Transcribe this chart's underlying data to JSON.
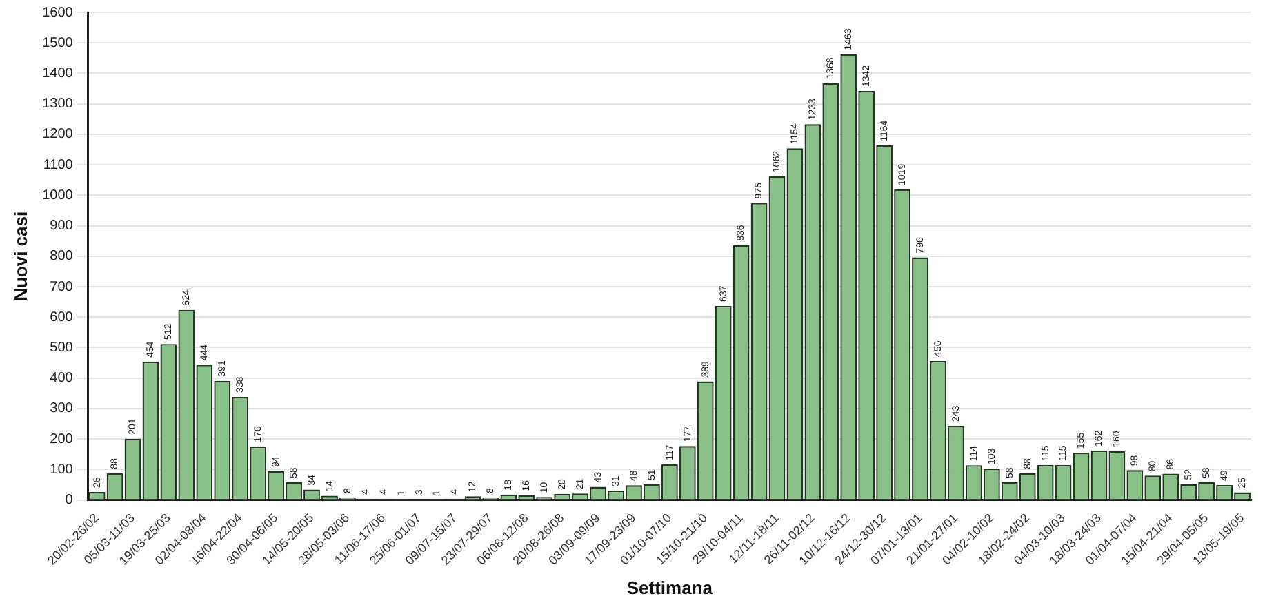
{
  "chart_data": {
    "type": "bar",
    "xlabel": "Settimana",
    "ylabel": "Nuovi casi",
    "categories": [
      "20/02-26/02",
      null,
      "05/03-11/03",
      null,
      "19/03-25/03",
      null,
      "02/04-08/04",
      null,
      "16/04-22/04",
      null,
      "30/04-06/05",
      null,
      "14/05-20/05",
      null,
      "28/05-03/06",
      null,
      "11/06-17/06",
      null,
      "25/06-01/07",
      null,
      "09/07-15/07",
      null,
      "23/07-29/07",
      null,
      "06/08-12/08",
      null,
      "20/08-26/08",
      null,
      "03/09-09/09",
      null,
      "17/09-23/09",
      null,
      "01/10-07/10",
      null,
      "15/10-21/10",
      null,
      "29/10-04/11",
      null,
      "12/11-18/11",
      null,
      "26/11-02/12",
      null,
      "10/12-16/12",
      null,
      "24/12-30/12",
      null,
      "07/01-13/01",
      null,
      "21/01-27/01",
      null,
      "04/02-10/02",
      null,
      "18/02-24/02",
      null,
      "04/03-10/03",
      null,
      "18/03-24/03",
      null,
      "01/04-07/04",
      null,
      "15/04-21/04",
      null,
      "29/04-05/05",
      null,
      "13/05-19/05"
    ],
    "values": [
      26,
      88,
      201,
      454,
      512,
      624,
      444,
      391,
      338,
      176,
      94,
      58,
      34,
      14,
      8,
      4,
      4,
      1,
      3,
      1,
      4,
      12,
      8,
      18,
      16,
      10,
      20,
      21,
      43,
      31,
      48,
      51,
      117,
      177,
      389,
      637,
      836,
      975,
      1062,
      1154,
      1233,
      1368,
      1463,
      1342,
      1164,
      1019,
      796,
      456,
      243,
      114,
      103,
      58,
      88,
      115,
      115,
      155,
      162,
      160,
      98,
      80,
      86,
      52,
      58,
      49,
      25
    ],
    "color": "#88c088",
    "ylim": [
      0,
      1600
    ],
    "yticks": [
      0,
      100,
      200,
      300,
      400,
      500,
      600,
      700,
      800,
      900,
      1000,
      1100,
      1200,
      1300,
      1400,
      1500,
      1600
    ],
    "grid": "y",
    "data_labels": true,
    "legend": false
  }
}
